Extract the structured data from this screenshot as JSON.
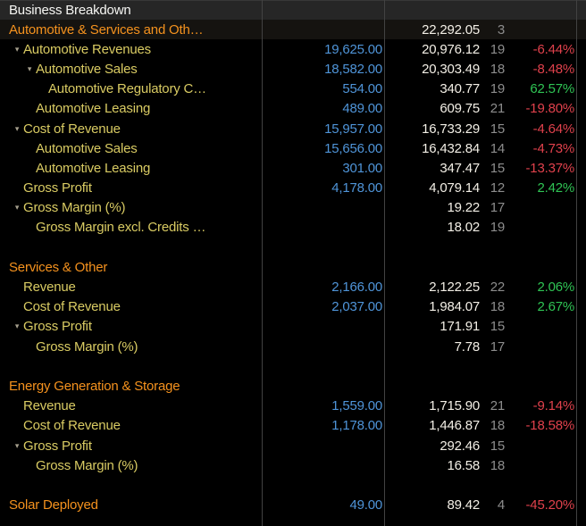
{
  "window": {
    "title": "Business Breakdown"
  },
  "colors": {
    "background": "#000000",
    "titlebar_bg": "#262626",
    "title_text": "#f6f6f3",
    "section_orange": "#f5921e",
    "row_yellow": "#d9cb63",
    "estimate_blue": "#4f94d8",
    "actual_white": "#f3efe6",
    "count_gray": "#8d8d8d",
    "negative_red": "#e0414c",
    "positive_green": "#2fc454",
    "divider_gray": "#424242"
  },
  "table": {
    "rows": [
      {
        "label": "Automotive & Services and Oth…",
        "indent": 0,
        "color": "orange",
        "arrow": "cut",
        "est": "",
        "actual": "22,292.05",
        "count": "3",
        "pct": "",
        "pct_color": "",
        "highlight": true
      },
      {
        "label": "Automotive Revenues",
        "indent": 1,
        "color": "yellow",
        "arrow": "down",
        "est": "19,625.00",
        "actual": "20,976.12",
        "count": "19",
        "pct": "-6.44%",
        "pct_color": "red"
      },
      {
        "label": "Automotive Sales",
        "indent": 2,
        "color": "yellow",
        "arrow": "down",
        "est": "18,582.00",
        "actual": "20,303.49",
        "count": "18",
        "pct": "-8.48%",
        "pct_color": "red"
      },
      {
        "label": "Automotive Regulatory C…",
        "indent": 3,
        "color": "yellow",
        "arrow": "none",
        "est": "554.00",
        "actual": "340.77",
        "count": "19",
        "pct": "62.57%",
        "pct_color": "green"
      },
      {
        "label": "Automotive Leasing",
        "indent": 2,
        "color": "yellow",
        "arrow": "none",
        "est": "489.00",
        "actual": "609.75",
        "count": "21",
        "pct": "-19.80%",
        "pct_color": "red"
      },
      {
        "label": "Cost of Revenue",
        "indent": 1,
        "color": "yellow",
        "arrow": "down",
        "est": "15,957.00",
        "actual": "16,733.29",
        "count": "15",
        "pct": "-4.64%",
        "pct_color": "red"
      },
      {
        "label": "Automotive Sales",
        "indent": 2,
        "color": "yellow",
        "arrow": "none",
        "est": "15,656.00",
        "actual": "16,432.84",
        "count": "14",
        "pct": "-4.73%",
        "pct_color": "red"
      },
      {
        "label": "Automotive Leasing",
        "indent": 2,
        "color": "yellow",
        "arrow": "none",
        "est": "301.00",
        "actual": "347.47",
        "count": "15",
        "pct": "-13.37%",
        "pct_color": "red"
      },
      {
        "label": "Gross Profit",
        "indent": 1,
        "color": "yellow",
        "arrow": "none",
        "est": "4,178.00",
        "actual": "4,079.14",
        "count": "12",
        "pct": "2.42%",
        "pct_color": "green"
      },
      {
        "label": "Gross Margin (%)",
        "indent": 1,
        "color": "yellow",
        "arrow": "down",
        "est": "",
        "actual": "19.22",
        "count": "17",
        "pct": "",
        "pct_color": ""
      },
      {
        "label": "Gross Margin excl. Credits …",
        "indent": 2,
        "color": "yellow",
        "arrow": "none",
        "est": "",
        "actual": "18.02",
        "count": "19",
        "pct": "",
        "pct_color": ""
      },
      {
        "blank": true
      },
      {
        "label": "Services & Other",
        "indent": 0,
        "color": "orange",
        "arrow": "cut",
        "est": "",
        "actual": "",
        "count": "",
        "pct": "",
        "pct_color": ""
      },
      {
        "label": "Revenue",
        "indent": 1,
        "color": "yellow",
        "arrow": "none",
        "est": "2,166.00",
        "actual": "2,122.25",
        "count": "22",
        "pct": "2.06%",
        "pct_color": "green"
      },
      {
        "label": "Cost of Revenue",
        "indent": 1,
        "color": "yellow",
        "arrow": "none",
        "est": "2,037.00",
        "actual": "1,984.07",
        "count": "18",
        "pct": "2.67%",
        "pct_color": "green"
      },
      {
        "label": "Gross Profit",
        "indent": 1,
        "color": "yellow",
        "arrow": "down",
        "est": "",
        "actual": "171.91",
        "count": "15",
        "pct": "",
        "pct_color": ""
      },
      {
        "label": "Gross Margin (%)",
        "indent": 2,
        "color": "yellow",
        "arrow": "none",
        "est": "",
        "actual": "7.78",
        "count": "17",
        "pct": "",
        "pct_color": ""
      },
      {
        "blank": true
      },
      {
        "label": "Energy Generation & Storage",
        "indent": 0,
        "color": "orange",
        "arrow": "cut",
        "est": "",
        "actual": "",
        "count": "",
        "pct": "",
        "pct_color": ""
      },
      {
        "label": "Revenue",
        "indent": 1,
        "color": "yellow",
        "arrow": "none",
        "est": "1,559.00",
        "actual": "1,715.90",
        "count": "21",
        "pct": "-9.14%",
        "pct_color": "red"
      },
      {
        "label": "Cost of Revenue",
        "indent": 1,
        "color": "yellow",
        "arrow": "none",
        "est": "1,178.00",
        "actual": "1,446.87",
        "count": "18",
        "pct": "-18.58%",
        "pct_color": "red"
      },
      {
        "label": "Gross Profit",
        "indent": 1,
        "color": "yellow",
        "arrow": "down",
        "est": "",
        "actual": "292.46",
        "count": "15",
        "pct": "",
        "pct_color": ""
      },
      {
        "label": "Gross Margin (%)",
        "indent": 2,
        "color": "yellow",
        "arrow": "none",
        "est": "",
        "actual": "16.58",
        "count": "18",
        "pct": "",
        "pct_color": ""
      },
      {
        "blank": true
      },
      {
        "label": "Solar Deployed",
        "indent": 0,
        "color": "orange",
        "arrow": "none",
        "est": "49.00",
        "actual": "89.42",
        "count": "4",
        "pct": "-45.20%",
        "pct_color": "red"
      }
    ]
  }
}
